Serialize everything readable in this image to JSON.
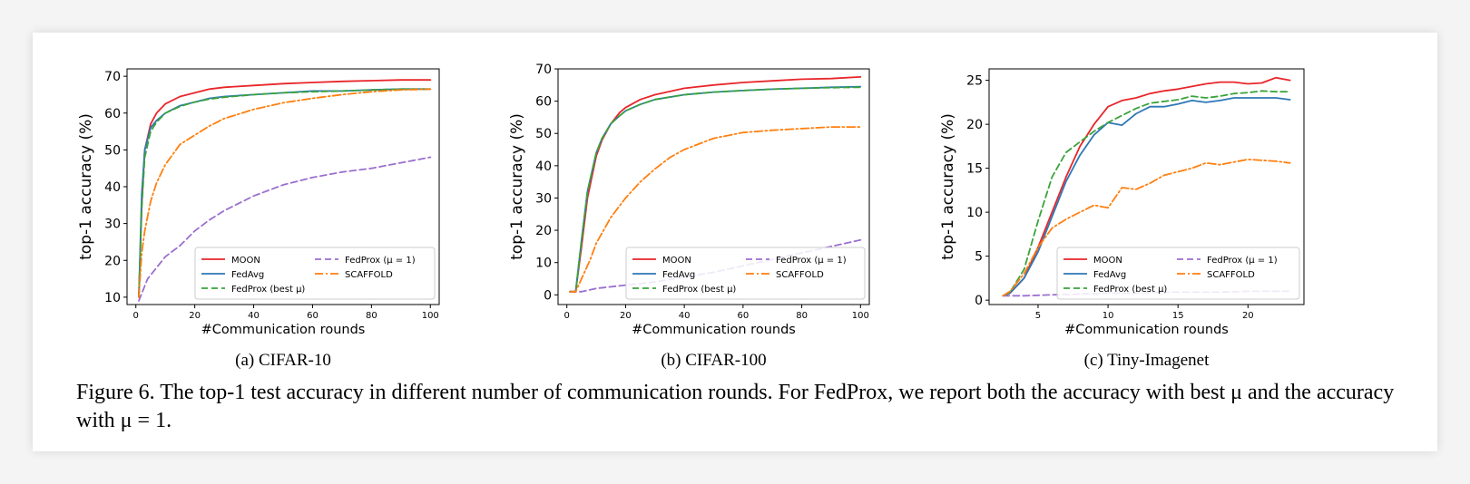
{
  "caption": {
    "text": "Figure 6. The top-1 test accuracy in different number of communication rounds. For FedProx, we report both the accuracy with best μ and the accuracy with μ = 1."
  },
  "legend_labels": {
    "moon": "MOON",
    "fedavg": "FedAvg",
    "fedprox_best": "FedProx (best μ)",
    "fedprox_mu1": "FedProx (μ = 1)",
    "scaffold": "SCAFFOLD"
  },
  "colors": {
    "MOON": "#e8262a",
    "FedAvg": "#2e78b6",
    "FedProx (best μ)": "#3aa33a",
    "FedProx (μ = 1)": "#9b6fcf",
    "SCAFFOLD": "#ff7f0e"
  },
  "chart_data": [
    {
      "type": "line",
      "subcaption": "(a) CIFAR-10",
      "xlabel": "#Communication rounds",
      "ylabel": "top-1 accuracy (%)",
      "xlim": [
        -3,
        103
      ],
      "ylim": [
        8,
        72
      ],
      "xticks": [
        0,
        20,
        40,
        60,
        80,
        100
      ],
      "yticks": [
        10,
        20,
        30,
        40,
        50,
        60,
        70
      ],
      "legend_position": "lower right",
      "series": [
        {
          "name": "MOON",
          "style": "solid",
          "x": [
            1,
            2,
            3,
            5,
            7,
            10,
            15,
            20,
            25,
            30,
            40,
            50,
            60,
            70,
            80,
            90,
            100
          ],
          "y": [
            10,
            35,
            50,
            57,
            60,
            62.5,
            64.5,
            65.5,
            66.5,
            67,
            67.5,
            68,
            68.3,
            68.6,
            68.8,
            69,
            69
          ]
        },
        {
          "name": "FedAvg",
          "style": "solid",
          "x": [
            1,
            2,
            3,
            5,
            7,
            10,
            15,
            20,
            25,
            30,
            40,
            50,
            60,
            70,
            80,
            90,
            100
          ],
          "y": [
            10,
            38,
            50,
            56,
            58,
            60,
            62,
            63,
            64,
            64.5,
            65,
            65.5,
            66,
            66,
            66.3,
            66.5,
            66.5
          ]
        },
        {
          "name": "FedProx (best μ)",
          "style": "dashed",
          "x": [
            1,
            2,
            3,
            5,
            7,
            10,
            15,
            20,
            25,
            30,
            40,
            50,
            60,
            70,
            80,
            90,
            100
          ],
          "y": [
            10,
            34,
            48,
            55,
            57.5,
            60,
            61.8,
            63,
            63.8,
            64.3,
            65,
            65.5,
            65.8,
            66,
            66.3,
            66.5,
            66.5
          ]
        },
        {
          "name": "FedProx (μ = 1)",
          "style": "dashed",
          "x": [
            1,
            2,
            4,
            7,
            10,
            15,
            20,
            25,
            30,
            40,
            50,
            60,
            70,
            80,
            90,
            100
          ],
          "y": [
            9,
            11,
            15,
            18,
            21,
            24,
            28,
            31,
            33.5,
            37.5,
            40.5,
            42.5,
            44,
            45,
            46.5,
            48
          ]
        },
        {
          "name": "SCAFFOLD",
          "style": "dashdot",
          "x": [
            1,
            2,
            3,
            5,
            7,
            10,
            15,
            20,
            25,
            30,
            40,
            50,
            60,
            70,
            80,
            90,
            100
          ],
          "y": [
            10,
            22,
            28,
            36,
            41,
            46,
            51.5,
            54,
            56.5,
            58.5,
            61,
            62.8,
            64,
            65,
            65.8,
            66.3,
            66.5
          ]
        }
      ]
    },
    {
      "type": "line",
      "subcaption": "(b) CIFAR-100",
      "xlabel": "#Communication rounds",
      "ylabel": "top-1 accuracy (%)",
      "xlim": [
        -3,
        103
      ],
      "ylim": [
        -3,
        70
      ],
      "xticks": [
        0,
        20,
        40,
        60,
        80,
        100
      ],
      "yticks": [
        0,
        10,
        20,
        30,
        40,
        50,
        60,
        70
      ],
      "legend_position": "lower right",
      "series": [
        {
          "name": "MOON",
          "style": "solid",
          "x": [
            1,
            3,
            5,
            7,
            10,
            12,
            15,
            18,
            20,
            25,
            30,
            40,
            50,
            60,
            70,
            80,
            90,
            100
          ],
          "y": [
            1,
            1,
            15,
            30,
            43,
            48,
            53,
            56.5,
            58,
            60.5,
            62,
            64,
            65,
            65.8,
            66.3,
            66.8,
            67,
            67.5
          ]
        },
        {
          "name": "FedAvg",
          "style": "solid",
          "x": [
            1,
            3,
            5,
            7,
            10,
            12,
            15,
            18,
            20,
            25,
            30,
            40,
            50,
            60,
            70,
            80,
            90,
            100
          ],
          "y": [
            1,
            1,
            17,
            32,
            44,
            48.5,
            53,
            55.5,
            57,
            59,
            60.5,
            62,
            62.8,
            63.3,
            63.7,
            64,
            64.3,
            64.5
          ]
        },
        {
          "name": "FedProx (best μ)",
          "style": "dashed",
          "x": [
            1,
            3,
            5,
            7,
            10,
            12,
            15,
            18,
            20,
            25,
            30,
            40,
            50,
            60,
            70,
            80,
            90,
            100
          ],
          "y": [
            1,
            1,
            17,
            32,
            44,
            48.5,
            53,
            55.5,
            57,
            59,
            60.5,
            62,
            62.8,
            63.3,
            63.7,
            64,
            64.2,
            64.3
          ]
        },
        {
          "name": "FedProx (μ = 1)",
          "style": "dashed",
          "x": [
            1,
            5,
            10,
            20,
            30,
            40,
            50,
            60,
            70,
            80,
            90,
            100
          ],
          "y": [
            1,
            1,
            2,
            3,
            4,
            5.5,
            7,
            9,
            11,
            13,
            15,
            17
          ]
        },
        {
          "name": "SCAFFOLD",
          "style": "dashdot",
          "x": [
            1,
            3,
            5,
            8,
            10,
            15,
            20,
            25,
            30,
            35,
            40,
            50,
            60,
            70,
            80,
            90,
            100
          ],
          "y": [
            1,
            1,
            5,
            11,
            16,
            24,
            30,
            35,
            39,
            42.5,
            45,
            48.5,
            50.3,
            51,
            51.5,
            52,
            52
          ]
        }
      ]
    },
    {
      "type": "line",
      "subcaption": "(c) Tiny-Imagenet",
      "xlabel": "#Communication rounds",
      "ylabel": "top-1 accuracy (%)",
      "xlim": [
        1.5,
        24
      ],
      "ylim": [
        -0.5,
        26.3
      ],
      "xticks": [
        5,
        10,
        15,
        20
      ],
      "yticks": [
        0,
        5,
        10,
        15,
        20,
        25
      ],
      "legend_position": "lower right",
      "series": [
        {
          "name": "MOON",
          "style": "solid",
          "x": [
            2.5,
            3,
            4,
            5,
            6,
            7,
            8,
            9,
            10,
            11,
            12,
            13,
            14,
            15,
            16,
            17,
            18,
            19,
            20,
            21,
            22,
            23
          ],
          "y": [
            0.5,
            0.8,
            2.5,
            6,
            10,
            14,
            17.5,
            20,
            22,
            22.7,
            23,
            23.5,
            23.8,
            24,
            24.3,
            24.6,
            24.8,
            24.8,
            24.6,
            24.7,
            25.3,
            25
          ]
        },
        {
          "name": "FedAvg",
          "style": "solid",
          "x": [
            2.5,
            3,
            4,
            5,
            6,
            7,
            8,
            9,
            10,
            11,
            12,
            13,
            14,
            15,
            16,
            17,
            18,
            19,
            20,
            21,
            22,
            23
          ],
          "y": [
            0.5,
            0.8,
            2.5,
            5.5,
            9.5,
            13.5,
            16.5,
            18.8,
            20.2,
            19.9,
            21.2,
            22,
            22,
            22.3,
            22.7,
            22.5,
            22.7,
            23,
            23,
            23,
            23,
            22.8
          ]
        },
        {
          "name": "FedProx (best μ)",
          "style": "dashed",
          "x": [
            2.5,
            3,
            4,
            5,
            6,
            7,
            8,
            9,
            10,
            11,
            12,
            13,
            14,
            15,
            16,
            17,
            18,
            19,
            20,
            21,
            22,
            23
          ],
          "y": [
            0.5,
            0.9,
            3.5,
            9,
            14,
            16.8,
            18,
            19.2,
            20.2,
            21,
            21.8,
            22.4,
            22.6,
            22.8,
            23.2,
            23,
            23.2,
            23.5,
            23.6,
            23.8,
            23.7,
            23.7
          ]
        },
        {
          "name": "FedProx (μ = 1)",
          "style": "dashed",
          "x": [
            2.5,
            4,
            6,
            8,
            10,
            12,
            14,
            16,
            18,
            20,
            22,
            23
          ],
          "y": [
            0.5,
            0.5,
            0.6,
            0.7,
            0.8,
            0.8,
            0.9,
            0.9,
            0.9,
            1.0,
            1.0,
            1.0
          ]
        },
        {
          "name": "SCAFFOLD",
          "style": "dashdot",
          "x": [
            2.5,
            3,
            4,
            5,
            6,
            7,
            8,
            9,
            10,
            11,
            12,
            13,
            14,
            15,
            16,
            17,
            18,
            19,
            20,
            21,
            22,
            23
          ],
          "y": [
            0.5,
            1,
            3,
            6,
            8.2,
            9.2,
            10,
            10.8,
            10.5,
            12.8,
            12.6,
            13.3,
            14.2,
            14.6,
            15,
            15.6,
            15.4,
            15.7,
            16,
            15.9,
            15.8,
            15.6
          ]
        }
      ]
    }
  ]
}
